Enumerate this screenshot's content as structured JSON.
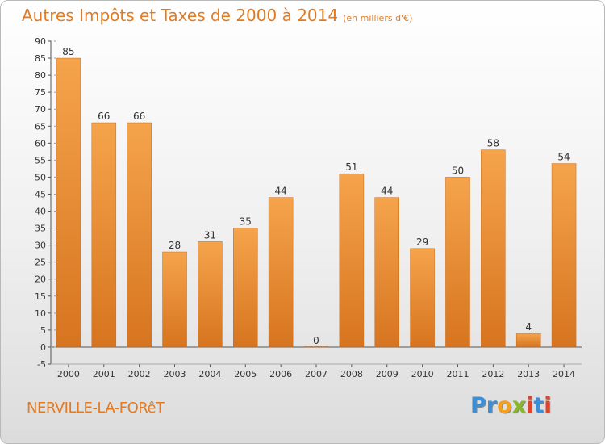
{
  "header": {
    "title": "Autres Impôts et Taxes de 2000 à 2014",
    "unit": "(en milliers d'€)"
  },
  "footer": {
    "commune": "NERVILLE-LA-FORêT",
    "brand_letters": [
      {
        "ch": "P",
        "color": "#3a8fd6"
      },
      {
        "ch": "r",
        "color": "#3a8fd6"
      },
      {
        "ch": "o",
        "color": "#f2a11c"
      },
      {
        "ch": "x",
        "color": "#86b82a"
      },
      {
        "ch": "i",
        "color": "#e0452a"
      },
      {
        "ch": "t",
        "color": "#3a8fd6"
      },
      {
        "ch": "i",
        "color": "#e0452a"
      }
    ]
  },
  "colors": {
    "bar_light": "#f5a44c",
    "bar_dark": "#d7741f",
    "axis": "#555555",
    "grid_tick": "#555555",
    "title": "#e07b24"
  },
  "chart_data": {
    "type": "bar",
    "categories": [
      "2000",
      "2001",
      "2002",
      "2003",
      "2004",
      "2005",
      "2006",
      "2007",
      "2008",
      "2009",
      "2010",
      "2011",
      "2012",
      "2013",
      "2014"
    ],
    "values": [
      85,
      66,
      66,
      28,
      31,
      35,
      44,
      0,
      51,
      44,
      29,
      50,
      58,
      4,
      54
    ],
    "data_labels": [
      "85",
      "66",
      "66",
      "28",
      "31",
      "35",
      "44",
      "0",
      "51",
      "44",
      "29",
      "50",
      "58",
      "4",
      "54"
    ],
    "ylim": [
      -5,
      90
    ],
    "yticks": [
      -5,
      0,
      5,
      10,
      15,
      20,
      25,
      30,
      35,
      40,
      45,
      50,
      55,
      60,
      65,
      70,
      75,
      80,
      85,
      90
    ],
    "title": "Autres Impôts et Taxes de 2000 à 2014",
    "xlabel": "",
    "ylabel": "",
    "grid": false,
    "legend": "none"
  }
}
